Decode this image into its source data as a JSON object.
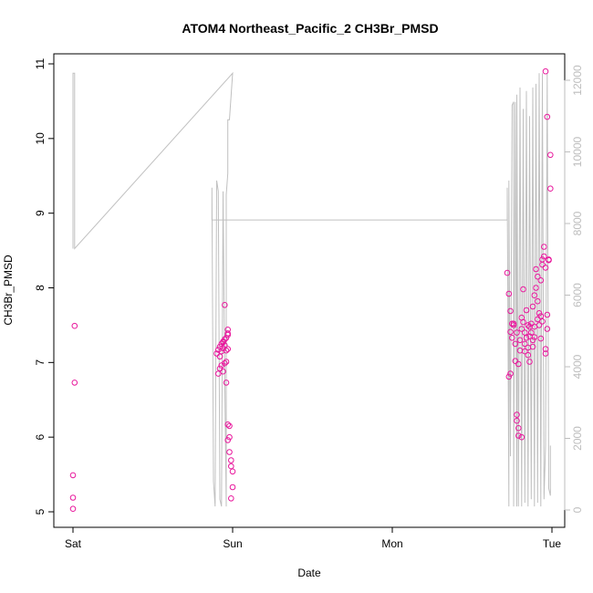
{
  "chart_data": {
    "type": "scatter",
    "title": "ATOM4 Northeast_Pacific_2 CH3Br_PMSD",
    "xlabel": "Date",
    "ylabel": "CH3Br_PMSD",
    "x_tick_labels": [
      "Sat",
      "Sun",
      "Mon",
      "Tue"
    ],
    "x_tick_days": [
      0,
      1,
      2,
      3
    ],
    "xlim_days": [
      0,
      3
    ],
    "ylim": [
      5,
      11
    ],
    "y_ticks": [
      5,
      6,
      7,
      8,
      9,
      10,
      11
    ],
    "y2lim": [
      0,
      12000
    ],
    "y2_ticks": [
      0,
      2000,
      4000,
      6000,
      8000,
      10000,
      12000
    ],
    "grid": false,
    "legend": "none",
    "colors": {
      "points": "#e8179c",
      "altitude_line": "#c0c0c0",
      "axes": "#000000",
      "right_axis": "#bdbdbd"
    },
    "series": [
      {
        "type": "scatter",
        "axis": "left",
        "days": [
          0.01,
          0.01,
          0.0,
          0.0,
          0.0,
          0.9,
          0.91,
          0.92,
          0.93,
          0.94,
          0.95,
          0.96,
          0.97,
          0.93,
          0.92,
          0.94,
          0.95,
          0.96,
          0.91,
          0.93,
          0.95,
          0.96,
          0.97,
          0.92,
          0.94,
          0.97,
          0.95,
          0.94,
          0.97,
          0.96,
          0.97,
          0.98,
          0.98,
          0.97,
          0.98,
          0.99,
          0.99,
          1.0,
          1.0,
          0.99
        ],
        "values": [
          7.49,
          6.73,
          5.49,
          5.19,
          5.04,
          7.12,
          7.17,
          7.21,
          7.25,
          7.28,
          7.31,
          7.33,
          7.37,
          7.15,
          7.08,
          7.19,
          7.23,
          7.16,
          6.85,
          6.96,
          6.99,
          7.01,
          7.18,
          6.92,
          6.88,
          7.44,
          7.77,
          7.27,
          7.39,
          6.73,
          6.17,
          6.15,
          6.0,
          5.96,
          5.8,
          5.69,
          5.61,
          5.54,
          5.33,
          5.18
        ]
      },
      {
        "type": "scatter",
        "axis": "left",
        "days": [
          2.72,
          2.73,
          2.74,
          2.75,
          2.76,
          2.74,
          2.75,
          2.77,
          2.77,
          2.78,
          2.78,
          2.79,
          2.79,
          2.8,
          2.8,
          2.81,
          2.81,
          2.82,
          2.82,
          2.83,
          2.83,
          2.84,
          2.84,
          2.85,
          2.85,
          2.86,
          2.86,
          2.87,
          2.87,
          2.88,
          2.88,
          2.89,
          2.89,
          2.9,
          2.9,
          2.91,
          2.91,
          2.92,
          2.92,
          2.93,
          2.93,
          2.94,
          2.94,
          2.95,
          2.95,
          2.96,
          2.96,
          2.97,
          2.97,
          2.98,
          2.98,
          2.99,
          2.99,
          2.73,
          2.74,
          2.76,
          2.78,
          2.79,
          2.81,
          2.83,
          2.85,
          2.86,
          2.88,
          2.89,
          2.91,
          2.93,
          2.94,
          2.96,
          2.97,
          2.96
        ],
        "values": [
          8.2,
          7.92,
          7.69,
          7.52,
          7.5,
          7.41,
          7.33,
          7.25,
          7.02,
          6.3,
          6.22,
          6.02,
          6.98,
          7.16,
          7.3,
          7.45,
          7.6,
          7.54,
          7.98,
          7.25,
          7.4,
          7.7,
          7.33,
          7.1,
          7.5,
          7.35,
          7.01,
          7.52,
          7.4,
          7.21,
          7.3,
          7.48,
          7.9,
          8.0,
          8.25,
          8.15,
          7.82,
          7.66,
          7.5,
          7.32,
          8.1,
          8.31,
          8.38,
          8.55,
          8.42,
          7.18,
          7.12,
          7.45,
          7.64,
          8.38,
          8.37,
          9.33,
          9.78,
          6.81,
          6.85,
          7.52,
          7.4,
          6.12,
          6.0,
          7.15,
          7.2,
          7.48,
          7.75,
          7.34,
          7.58,
          7.62,
          7.55,
          8.27,
          10.29,
          10.9
        ]
      },
      {
        "type": "line",
        "axis": "right",
        "name": "",
        "days": [
          0.0,
          0.0,
          0.01,
          0.01,
          1.0,
          1.0,
          0.98,
          0.97,
          0.97,
          0.96,
          0.96,
          0.95,
          0.94,
          0.93,
          0.92,
          0.91,
          0.9,
          0.89,
          0.88,
          0.87,
          0.87,
          2.72,
          2.72,
          2.73,
          2.73,
          2.74,
          2.75,
          2.76,
          2.76,
          2.77,
          2.78,
          2.78,
          2.79,
          2.8,
          2.81,
          2.82,
          2.83,
          2.84,
          2.85,
          2.86,
          2.87,
          2.88,
          2.89,
          2.9,
          2.91,
          2.92,
          2.93,
          2.94,
          2.95,
          2.96,
          2.97,
          2.97,
          2.98,
          2.99,
          2.99
        ],
        "values": [
          7300,
          12200,
          12200,
          7300,
          12200,
          12200,
          10900,
          10900,
          9400,
          8800,
          100,
          3800,
          8900,
          100,
          300,
          8900,
          9200,
          100,
          800,
          9000,
          8100,
          8100,
          9000,
          100,
          9200,
          1500,
          11300,
          11400,
          100,
          11400,
          100,
          11600,
          100,
          11800,
          100,
          11200,
          200,
          11700,
          100,
          11000,
          300,
          11800,
          100,
          11900,
          200,
          12200,
          100,
          12200,
          300,
          1800,
          12100,
          12200,
          600,
          400,
          1800
        ]
      }
    ]
  }
}
